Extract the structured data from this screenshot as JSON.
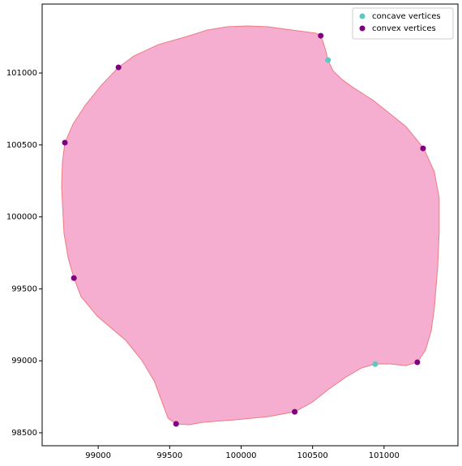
{
  "chart_data": {
    "type": "scatter",
    "polygon": {
      "fill": "#f5aecf",
      "edge": "#f07a80",
      "x": [
        99903,
        100045,
        100188,
        100358,
        100528,
        100557,
        100574,
        100591,
        100608,
        100642,
        100699,
        100767,
        100926,
        101153,
        101278,
        101352,
        101386,
        101386,
        101375,
        101352,
        101330,
        101290,
        101233,
        101153,
        101040,
        100938,
        100841,
        100727,
        100614,
        100500,
        100375,
        100188,
        99960,
        99733,
        99636,
        99545,
        99489,
        99449,
        99392,
        99307,
        99193,
        98994,
        98881,
        98830,
        98790,
        98761,
        98744,
        98750,
        98767,
        98824,
        98909,
        99023,
        99142,
        99250,
        99420,
        99619,
        99761
      ],
      "y": [
        101321,
        101327,
        101321,
        101298,
        101276,
        101259,
        101214,
        101158,
        101090,
        101017,
        100961,
        100910,
        100809,
        100628,
        100476,
        100313,
        100127,
        99902,
        99649,
        99367,
        99209,
        99074,
        98990,
        98967,
        98978,
        98978,
        98950,
        98883,
        98804,
        98714,
        98646,
        98612,
        98590,
        98573,
        98556,
        98562,
        98601,
        98708,
        98860,
        99001,
        99142,
        99310,
        99445,
        99575,
        99716,
        99885,
        100212,
        100381,
        100516,
        100645,
        100775,
        100916,
        101039,
        101118,
        101197,
        101253,
        101298
      ]
    },
    "series": [
      {
        "name": "concave vertices",
        "color": "#5bc8c8",
        "x": [
          100608,
          100938
        ],
        "y": [
          101090,
          98977
        ]
      },
      {
        "name": "convex vertices",
        "color": "#800080",
        "x": [
          100557,
          99142,
          98767,
          101273,
          98830,
          101233,
          100375,
          99545
        ],
        "y": [
          101259,
          101039,
          100516,
          100476,
          99575,
          98990,
          98646,
          98562
        ]
      }
    ],
    "xlim": [
      98608,
      101517
    ],
    "ylim": [
      98410,
      101479
    ],
    "xticks": [
      99000,
      99500,
      100000,
      100500,
      101000
    ],
    "yticks": [
      98500,
      99000,
      99500,
      100000,
      100500,
      101000
    ],
    "legend": "upper right"
  }
}
